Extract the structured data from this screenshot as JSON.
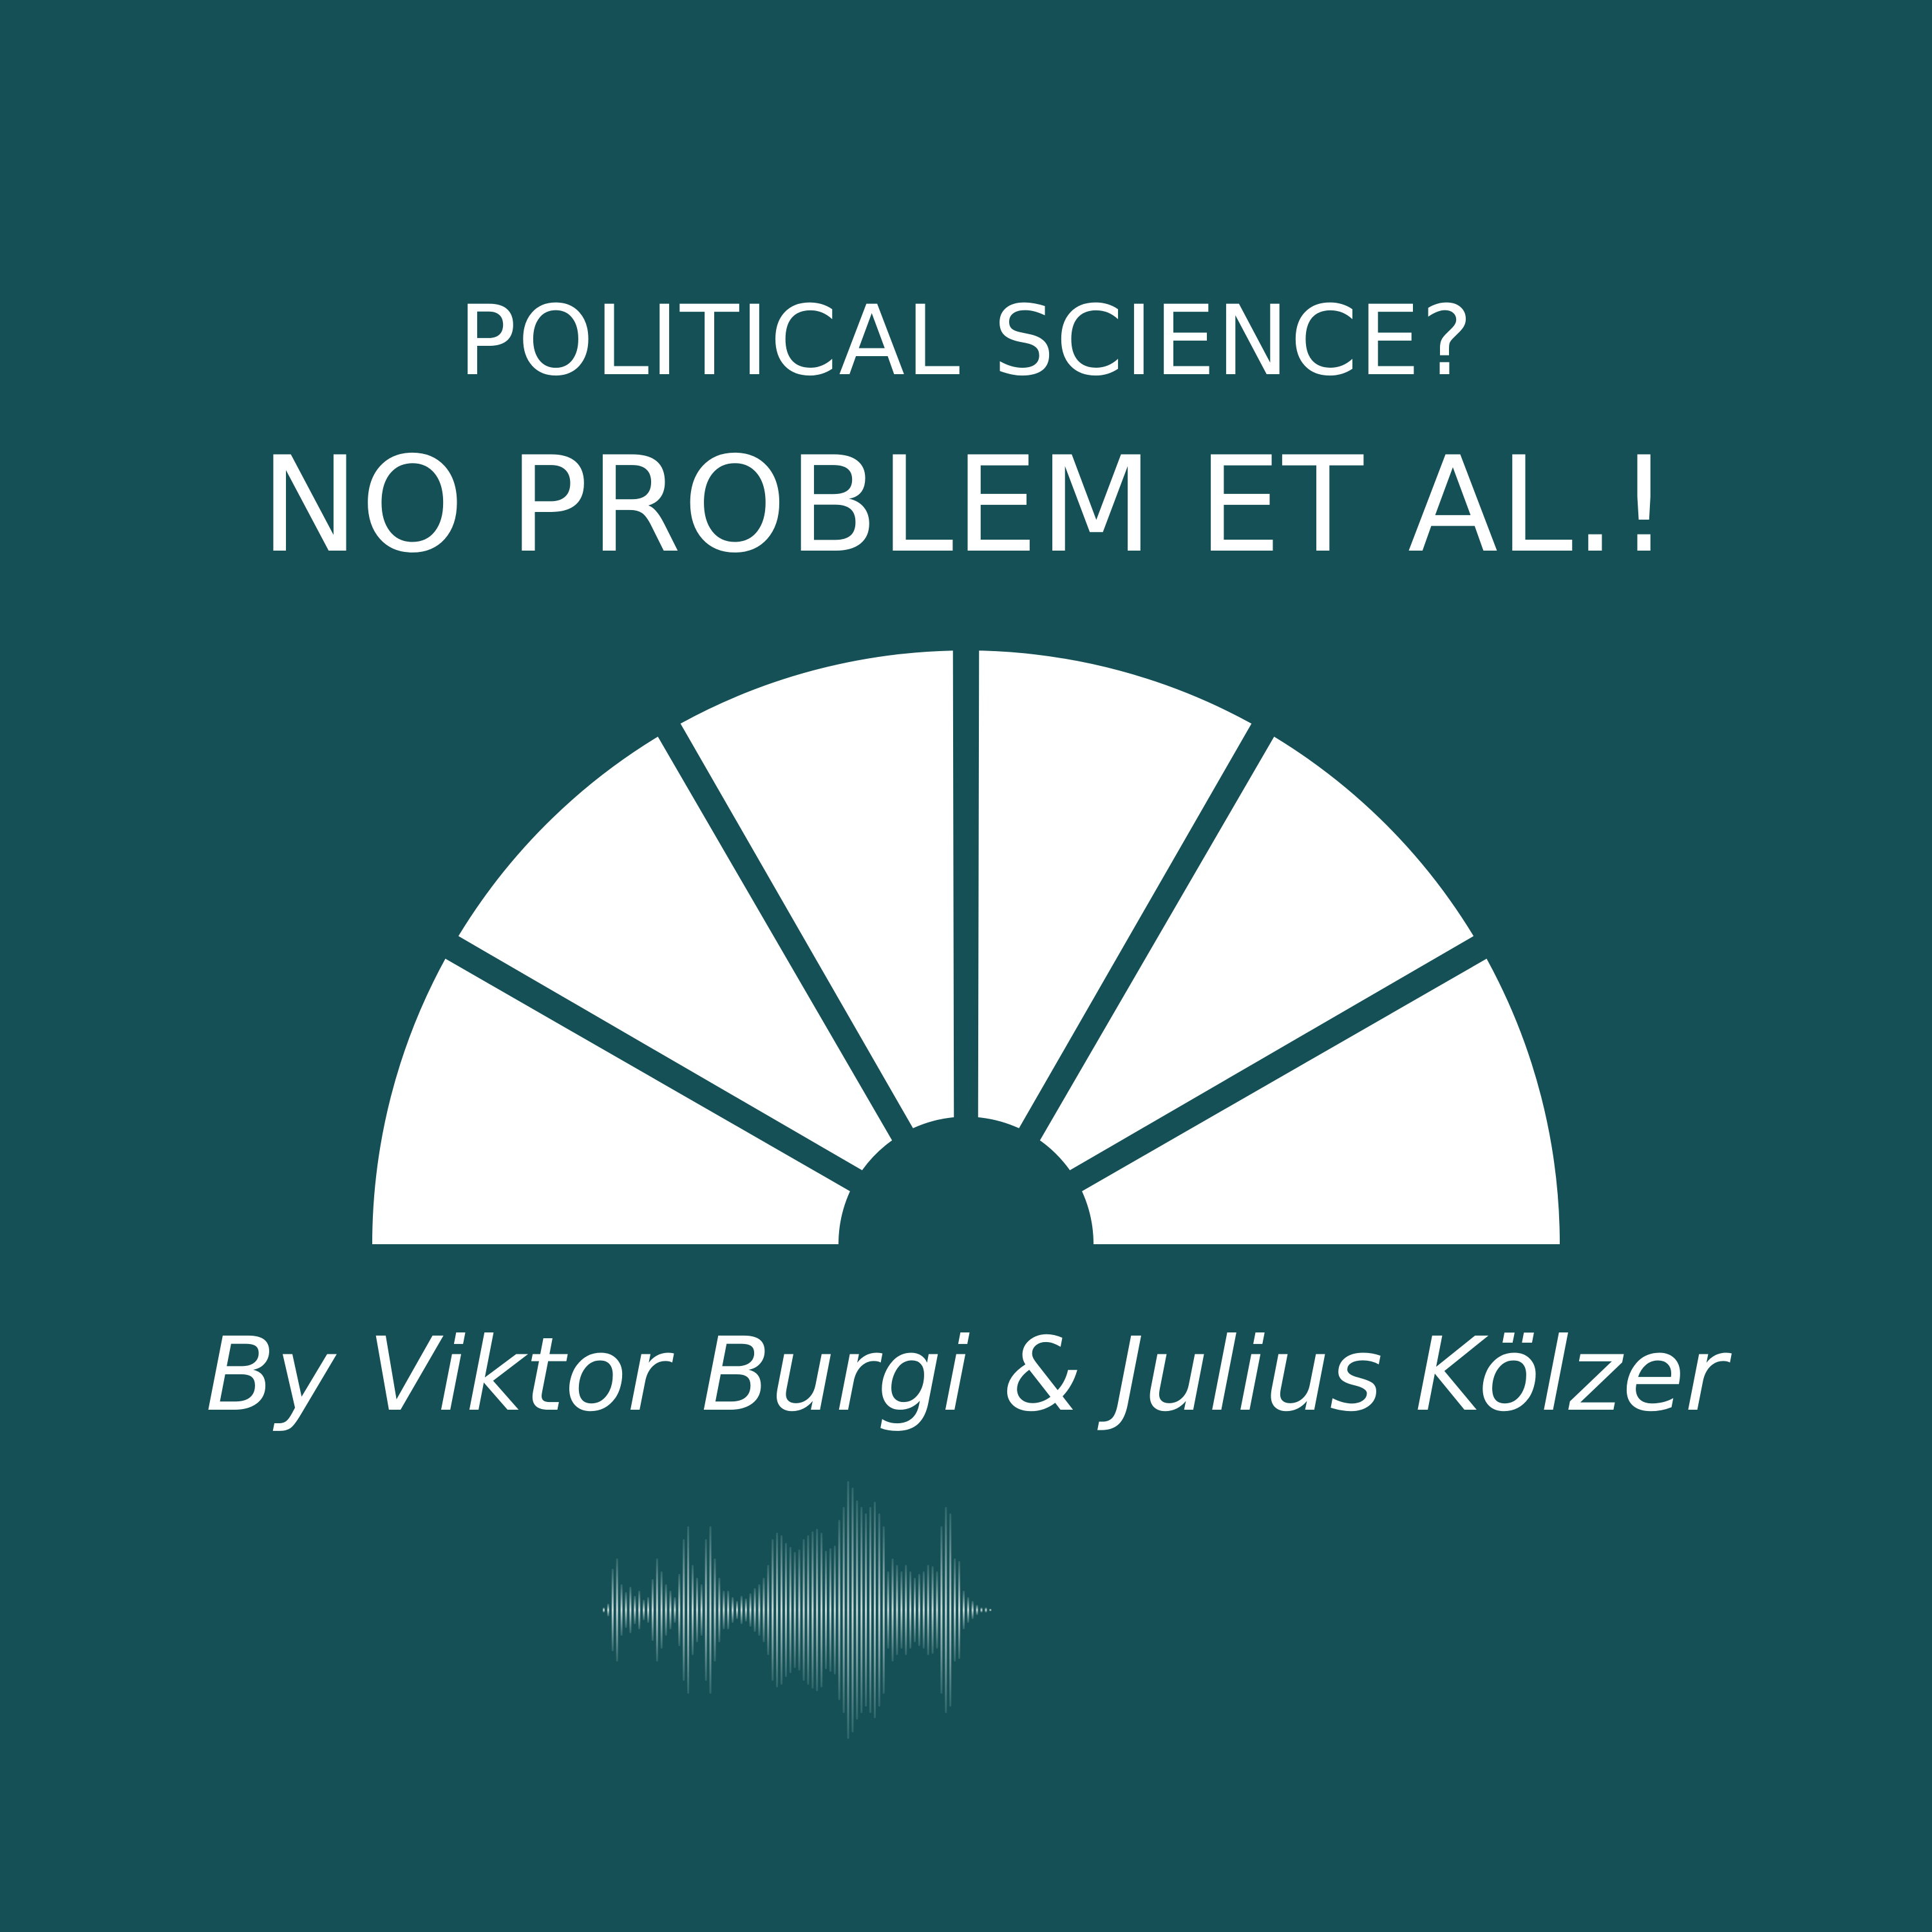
{
  "cover": {
    "subtitle": "POLITICAL SCIENCE?",
    "title": "NO PROBLEM ET AL.!",
    "byline": "By Viktor Burgi & Julius Kölzer"
  },
  "colors": {
    "background": "#145055",
    "foreground": "#ffffff",
    "waveform": "#9fbfbf"
  },
  "emblem": {
    "icon": "parliament-hemicycle-icon",
    "segments": 6
  },
  "waveform": {
    "icon": "audio-waveform-icon"
  }
}
